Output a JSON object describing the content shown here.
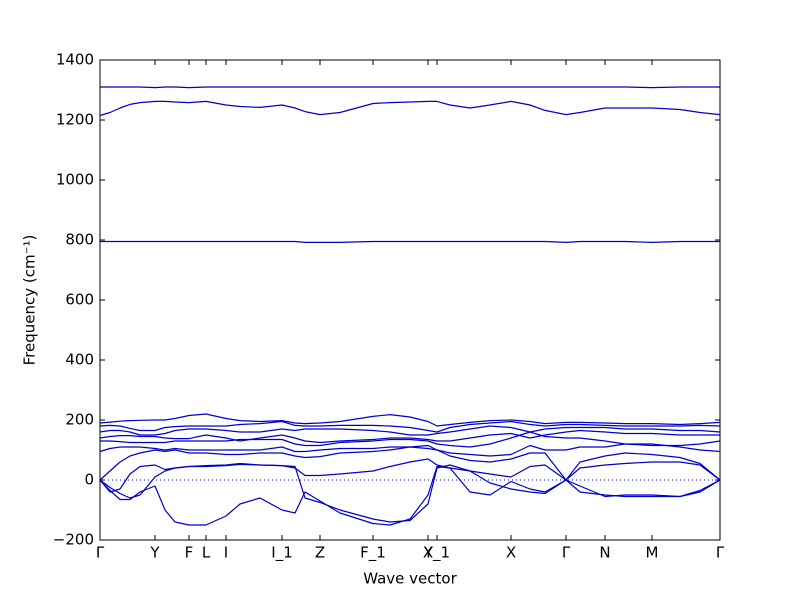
{
  "chart_data": {
    "type": "line",
    "xlabel": "Wave vector",
    "ylabel": "Frequency (cm⁻¹)",
    "color": "#0000cc",
    "reference_line": 0,
    "xlim": [
      0,
      620
    ],
    "ylim": [
      -200,
      1400
    ],
    "yticks": [
      {
        "value": -200,
        "label": "−200"
      },
      0,
      200,
      400,
      600,
      800,
      1000,
      1200,
      1400
    ],
    "xticks": [
      {
        "value": 0,
        "label": "Γ"
      },
      {
        "value": 55,
        "label": "Y"
      },
      {
        "value": 89,
        "label": "F"
      },
      {
        "value": 106,
        "label": "L"
      },
      {
        "value": 126,
        "label": "I"
      },
      {
        "value": 182,
        "label": "I_1"
      },
      {
        "value": 220,
        "label": "Z"
      },
      {
        "value": 273,
        "label": "F_1"
      },
      {
        "value": 328,
        "label": "X"
      },
      {
        "value": 337,
        "label": "Y_1"
      },
      {
        "value": 411,
        "label": "X"
      },
      {
        "value": 466,
        "label": "Γ"
      },
      {
        "value": 505,
        "label": "N"
      },
      {
        "value": 552,
        "label": "M"
      },
      {
        "value": 620,
        "label": "Γ"
      }
    ],
    "x": [
      0,
      10,
      20,
      30,
      40,
      55,
      65,
      75,
      89,
      106,
      126,
      140,
      160,
      182,
      195,
      205,
      220,
      240,
      273,
      290,
      310,
      328,
      337,
      350,
      370,
      390,
      411,
      430,
      445,
      466,
      480,
      505,
      525,
      552,
      580,
      600,
      620
    ],
    "series": [
      {
        "values": [
          1310,
          1310,
          1310,
          1310,
          1310,
          1308,
          1310,
          1310,
          1308,
          1310,
          1310,
          1310,
          1310,
          1310,
          1310,
          1310,
          1310,
          1310,
          1310,
          1310,
          1310,
          1310,
          1310,
          1310,
          1310,
          1310,
          1310,
          1310,
          1310,
          1310,
          1310,
          1310,
          1310,
          1308,
          1310,
          1310,
          1310
        ]
      },
      {
        "values": [
          1215,
          1225,
          1240,
          1252,
          1258,
          1262,
          1262,
          1260,
          1258,
          1262,
          1250,
          1245,
          1242,
          1250,
          1240,
          1228,
          1218,
          1225,
          1255,
          1258,
          1260,
          1262,
          1262,
          1250,
          1240,
          1250,
          1262,
          1250,
          1232,
          1218,
          1225,
          1240,
          1240,
          1240,
          1235,
          1225,
          1218
        ]
      },
      {
        "values": [
          795,
          795,
          795,
          795,
          795,
          795,
          795,
          795,
          795,
          795,
          795,
          795,
          795,
          795,
          795,
          792,
          792,
          792,
          795,
          795,
          795,
          795,
          795,
          795,
          795,
          795,
          795,
          795,
          795,
          792,
          795,
          795,
          795,
          792,
          795,
          795,
          795
        ]
      },
      {
        "values": [
          190,
          193,
          196,
          198,
          199,
          200,
          200,
          205,
          215,
          220,
          205,
          198,
          195,
          198,
          190,
          188,
          190,
          195,
          212,
          218,
          210,
          195,
          180,
          185,
          192,
          198,
          200,
          195,
          188,
          192,
          192,
          190,
          188,
          188,
          185,
          188,
          192
        ]
      },
      {
        "values": [
          180,
          182,
          180,
          172,
          165,
          165,
          175,
          178,
          180,
          180,
          180,
          185,
          188,
          195,
          182,
          180,
          180,
          182,
          182,
          180,
          175,
          165,
          160,
          175,
          185,
          190,
          195,
          185,
          180,
          185,
          185,
          182,
          180,
          180,
          180,
          182,
          180
        ]
      },
      {
        "values": [
          160,
          165,
          165,
          160,
          150,
          150,
          155,
          165,
          170,
          170,
          165,
          160,
          160,
          170,
          165,
          170,
          170,
          170,
          165,
          160,
          150,
          150,
          155,
          160,
          170,
          180,
          175,
          160,
          170,
          175,
          175,
          175,
          170,
          170,
          165,
          165,
          160
        ]
      },
      {
        "values": [
          140,
          145,
          148,
          148,
          145,
          145,
          140,
          138,
          138,
          150,
          140,
          130,
          140,
          150,
          140,
          130,
          125,
          130,
          135,
          140,
          140,
          135,
          130,
          130,
          140,
          150,
          155,
          140,
          150,
          160,
          165,
          160,
          155,
          155,
          150,
          150,
          150
        ]
      },
      {
        "values": [
          130,
          130,
          128,
          125,
          125,
          125,
          125,
          130,
          130,
          130,
          130,
          135,
          135,
          135,
          120,
          115,
          115,
          125,
          130,
          135,
          135,
          130,
          120,
          115,
          110,
          120,
          140,
          160,
          145,
          140,
          140,
          130,
          120,
          115,
          115,
          120,
          130
        ]
      },
      {
        "values": [
          95,
          105,
          110,
          110,
          110,
          105,
          100,
          105,
          100,
          100,
          100,
          100,
          100,
          110,
          95,
          95,
          100,
          105,
          105,
          110,
          110,
          105,
          100,
          90,
          85,
          80,
          85,
          115,
          100,
          100,
          110,
          110,
          120,
          120,
          110,
          100,
          95
        ]
      },
      {
        "values": [
          0,
          30,
          60,
          80,
          90,
          100,
          95,
          100,
          90,
          90,
          85,
          85,
          90,
          90,
          80,
          75,
          78,
          90,
          95,
          100,
          110,
          115,
          100,
          80,
          65,
          60,
          70,
          90,
          90,
          0,
          60,
          80,
          90,
          85,
          75,
          55,
          0
        ]
      },
      {
        "values": [
          0,
          -40,
          -30,
          20,
          45,
          50,
          35,
          40,
          45,
          48,
          50,
          55,
          50,
          48,
          40,
          15,
          15,
          20,
          30,
          45,
          60,
          70,
          50,
          40,
          30,
          20,
          10,
          45,
          50,
          0,
          40,
          50,
          55,
          60,
          60,
          50,
          0
        ]
      },
      {
        "values": [
          0,
          -25,
          -45,
          -60,
          -50,
          10,
          30,
          40,
          45,
          45,
          48,
          52,
          50,
          48,
          45,
          -60,
          -75,
          -100,
          -130,
          -140,
          -135,
          -80,
          40,
          50,
          30,
          -10,
          -30,
          -40,
          -45,
          0,
          -20,
          -55,
          -50,
          -50,
          -55,
          -40,
          0
        ]
      },
      {
        "values": [
          0,
          -35,
          -65,
          -65,
          -40,
          -20,
          -100,
          -140,
          -150,
          -150,
          -120,
          -80,
          -60,
          -100,
          -110,
          -40,
          -70,
          -110,
          -145,
          -150,
          -130,
          -50,
          45,
          40,
          -40,
          -50,
          -5,
          -30,
          -40,
          0,
          -40,
          -50,
          -55,
          -55,
          -55,
          -35,
          0
        ]
      }
    ]
  }
}
